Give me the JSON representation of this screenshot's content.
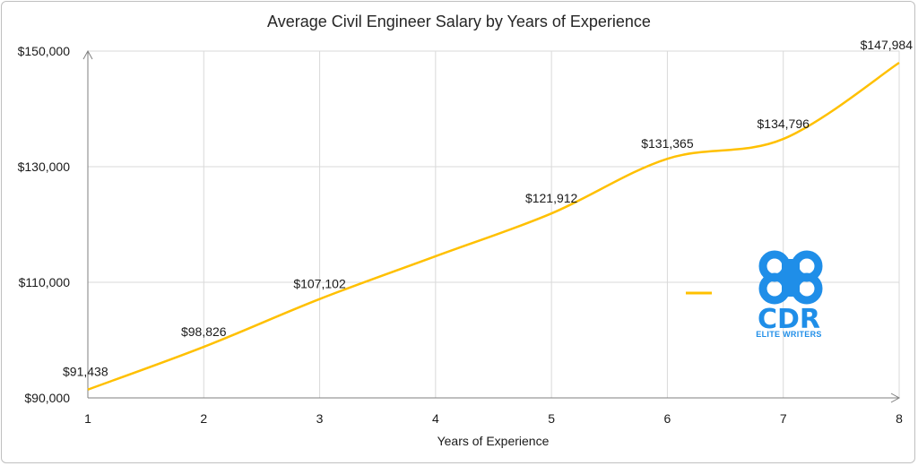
{
  "chart_data": {
    "type": "line",
    "title": "Average Civil Engineer Salary by Years of Experience",
    "xlabel": "Years of Experience",
    "ylabel": "",
    "x": [
      1,
      2,
      3,
      4,
      5,
      6,
      7,
      8
    ],
    "series": [
      {
        "values": [
          91438,
          98826,
          107102,
          114507,
          121912,
          131365,
          134796,
          147984
        ],
        "color": "#FFC000",
        "labels": [
          "$91,438",
          "$98,826",
          "$107,102",
          null,
          "$121,912",
          "$131,365",
          "$134,796",
          "$147,984"
        ]
      }
    ],
    "xlim": [
      1,
      8
    ],
    "ylim": [
      90000,
      150000
    ],
    "yticks": [
      90000,
      110000,
      130000,
      150000
    ],
    "ytick_labels": [
      "$90,000",
      "$110,000",
      "$130,000",
      "$150,000"
    ],
    "xtick_labels": [
      "1",
      "2",
      "3",
      "4",
      "5",
      "6",
      "7",
      "8"
    ],
    "grid": true,
    "smooth": true,
    "legend": "right"
  },
  "watermark": {
    "text": "CDR",
    "subtext": "ELITE WRITERS",
    "color": "#1f8ee8"
  }
}
